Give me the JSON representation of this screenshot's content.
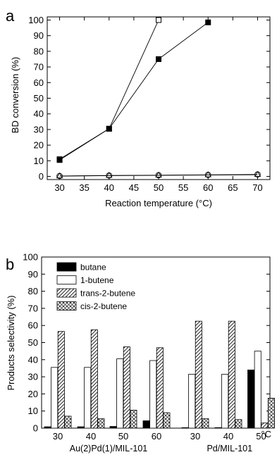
{
  "chart_data": [
    {
      "type": "line",
      "panel": "a",
      "xlabel": "Reaction temperature (°C)",
      "ylabel": "BD conversion (%)",
      "xlim": [
        27.5,
        72.5
      ],
      "ylim": [
        -2,
        102
      ],
      "xticks": [
        30,
        35,
        40,
        45,
        50,
        55,
        60,
        65,
        70
      ],
      "yticks": [
        0,
        10,
        20,
        30,
        40,
        50,
        60,
        70,
        80,
        90,
        100
      ],
      "series": [
        {
          "marker": "open-square",
          "x": [
            30,
            40,
            50
          ],
          "y": [
            11,
            30.5,
            100
          ]
        },
        {
          "marker": "filled-square",
          "x": [
            30,
            40,
            50,
            60
          ],
          "y": [
            10.5,
            30.5,
            75,
            98.5
          ]
        },
        {
          "marker": "open-circle",
          "x": [
            30,
            40,
            50,
            60,
            70
          ],
          "y": [
            0.3,
            0.6,
            0.8,
            1.0,
            1.3
          ]
        },
        {
          "marker": "open-triangle",
          "x": [
            30,
            40,
            50,
            60,
            70
          ],
          "y": [
            0.2,
            0.5,
            0.7,
            0.9,
            1.1
          ]
        }
      ]
    },
    {
      "type": "bar",
      "panel": "b",
      "ylabel": "Products selectivity (%)",
      "ylim": [
        0,
        100
      ],
      "yticks": [
        0,
        10,
        20,
        30,
        40,
        50,
        60,
        70,
        80,
        90,
        100
      ],
      "categories": [
        "30",
        "40",
        "50",
        "60",
        "30",
        "40",
        "50"
      ],
      "unit_label": "°C",
      "groups": [
        {
          "label": "Au(2)Pd(1)/MIL-101",
          "start": 0,
          "end": 3
        },
        {
          "label": "Pd/MIL-101",
          "start": 4,
          "end": 6
        }
      ],
      "series": [
        {
          "name": "butane",
          "pattern": "solid",
          "values": [
            0.8,
            0.8,
            1.0,
            4.3,
            0.3,
            0.3,
            34.0
          ]
        },
        {
          "name": "1-butene",
          "pattern": "open",
          "values": [
            35.5,
            35.5,
            40.5,
            39.5,
            31.5,
            31.5,
            45.0
          ]
        },
        {
          "name": "trans-2-butene",
          "pattern": "hatch",
          "values": [
            56.5,
            57.5,
            47.5,
            47.0,
            62.5,
            62.5,
            3.0
          ]
        },
        {
          "name": "cis-2-butene",
          "pattern": "crosshatch",
          "values": [
            7.0,
            5.5,
            10.5,
            9.0,
            5.5,
            5.0,
            17.5
          ]
        }
      ],
      "legend": "top-left"
    }
  ],
  "labels": {
    "panel_a": "a",
    "panel_b": "b"
  }
}
